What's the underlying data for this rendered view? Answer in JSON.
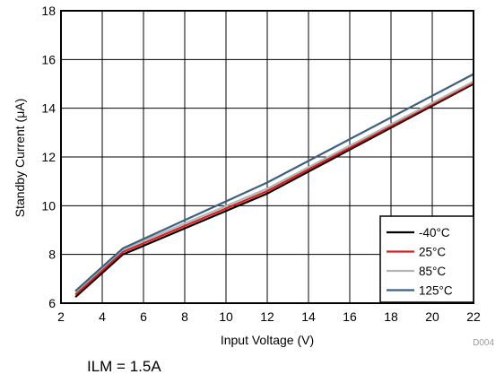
{
  "chart_data": {
    "type": "line",
    "xlabel": "Input Voltage (V)",
    "ylabel": "Standby Current (μA)",
    "xlim": [
      2,
      22
    ],
    "ylim": [
      6,
      18
    ],
    "xticks": [
      "2",
      "4",
      "6",
      "8",
      "10",
      "12",
      "14",
      "16",
      "18",
      "20",
      "22"
    ],
    "yticks": [
      "6",
      "8",
      "10",
      "12",
      "14",
      "16",
      "18"
    ],
    "grid": true,
    "legend_position": "bottom-right",
    "series": [
      {
        "name": "-40°C",
        "color": "#000000",
        "x": [
          2.7,
          5,
          12,
          22
        ],
        "y": [
          6.25,
          8.0,
          10.5,
          15.0
        ]
      },
      {
        "name": "25°C",
        "color": "#e31a1c",
        "x": [
          2.7,
          5,
          12,
          22
        ],
        "y": [
          6.35,
          8.1,
          10.6,
          15.05
        ]
      },
      {
        "name": "85°C",
        "color": "#b5b5b5",
        "x": [
          2.7,
          5,
          12,
          22
        ],
        "y": [
          6.45,
          8.2,
          10.7,
          15.1
        ]
      },
      {
        "name": "125°C",
        "color": "#3c6180",
        "x": [
          2.7,
          5,
          12,
          22
        ],
        "y": [
          6.5,
          8.25,
          10.95,
          15.4
        ]
      }
    ]
  },
  "figure_id": "D004",
  "caption": "ILM = 1.5A"
}
